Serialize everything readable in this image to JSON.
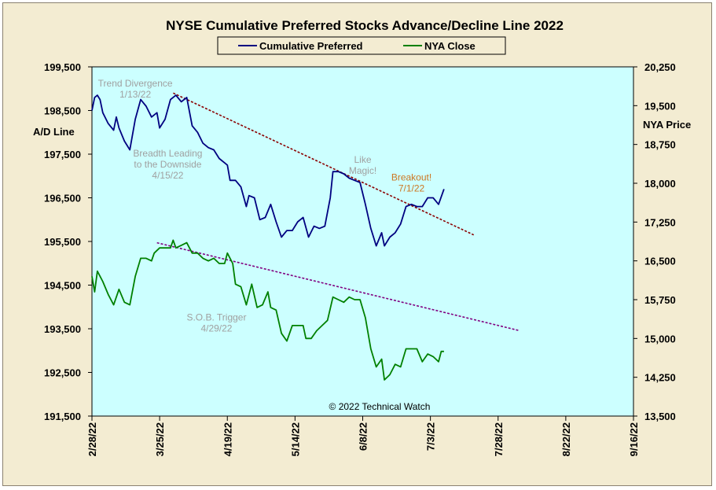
{
  "chart_data": {
    "type": "line",
    "title": "NYSE Cumulative  Preferred Stocks Advance/Decline  Line 2022",
    "ylabel_left": "A/D Line",
    "ylabel_right": "NYA Price",
    "copyright": "© 2022  Technical Watch",
    "legend": [
      "Cumulative Preferred",
      "NYA Close"
    ],
    "colors": {
      "ad_line": "#000080",
      "nya": "#008000",
      "plot_bg": "#ccffff",
      "frame_bg": "#f3ecd2",
      "ad_trend": "#8b0000",
      "nya_trend": "#800080",
      "annotation": "#a0a0a0",
      "breakout": "#cc7722"
    },
    "x_ticks": [
      "2/28/22",
      "3/25/22",
      "4/19/22",
      "5/14/22",
      "6/8/22",
      "7/3/22",
      "7/28/22",
      "8/22/22",
      "9/16/22"
    ],
    "x_tick_days": [
      0,
      25,
      50,
      75,
      100,
      125,
      150,
      175,
      200
    ],
    "y_left": {
      "min": 191500,
      "max": 199500,
      "ticks": [
        "191,500",
        "192,500",
        "193,500",
        "194,500",
        "195,500",
        "196,500",
        "197,500",
        "198,500",
        "199,500"
      ]
    },
    "y_right": {
      "min": 13500,
      "max": 20250,
      "ticks": [
        "13,500",
        "14,250",
        "15,000",
        "15,750",
        "16,500",
        "17,250",
        "18,000",
        "18,750",
        "19,500",
        "20,250"
      ]
    },
    "series": [
      {
        "name": "Cumulative Preferred",
        "axis": "left",
        "points": [
          [
            0,
            198500
          ],
          [
            1,
            198800
          ],
          [
            2,
            198850
          ],
          [
            3,
            198750
          ],
          [
            4,
            198450
          ],
          [
            6,
            198200
          ],
          [
            8,
            198050
          ],
          [
            9,
            198350
          ],
          [
            10,
            198100
          ],
          [
            12,
            197800
          ],
          [
            14,
            197600
          ],
          [
            16,
            198300
          ],
          [
            18,
            198750
          ],
          [
            20,
            198600
          ],
          [
            22,
            198350
          ],
          [
            24,
            198450
          ],
          [
            25,
            198100
          ],
          [
            27,
            198300
          ],
          [
            29,
            198750
          ],
          [
            31,
            198850
          ],
          [
            33,
            198700
          ],
          [
            35,
            198800
          ],
          [
            37,
            198150
          ],
          [
            39,
            198000
          ],
          [
            41,
            197750
          ],
          [
            43,
            197650
          ],
          [
            45,
            197600
          ],
          [
            47,
            197400
          ],
          [
            49,
            197300
          ],
          [
            50,
            197250
          ],
          [
            51,
            196900
          ],
          [
            53,
            196900
          ],
          [
            55,
            196750
          ],
          [
            57,
            196300
          ],
          [
            58,
            196550
          ],
          [
            60,
            196500
          ],
          [
            62,
            196000
          ],
          [
            64,
            196050
          ],
          [
            66,
            196350
          ],
          [
            68,
            195950
          ],
          [
            70,
            195600
          ],
          [
            72,
            195750
          ],
          [
            74,
            195750
          ],
          [
            76,
            195950
          ],
          [
            78,
            196050
          ],
          [
            80,
            195600
          ],
          [
            82,
            195850
          ],
          [
            84,
            195800
          ],
          [
            86,
            195850
          ],
          [
            88,
            196500
          ],
          [
            89,
            197100
          ],
          [
            91,
            197100
          ],
          [
            93,
            197050
          ],
          [
            95,
            196950
          ],
          [
            97,
            196900
          ],
          [
            99,
            196850
          ],
          [
            101,
            196350
          ],
          [
            103,
            195800
          ],
          [
            105,
            195400
          ],
          [
            107,
            195700
          ],
          [
            108,
            195400
          ],
          [
            110,
            195600
          ],
          [
            112,
            195700
          ],
          [
            114,
            195900
          ],
          [
            116,
            196300
          ],
          [
            118,
            196350
          ],
          [
            120,
            196300
          ],
          [
            122,
            196300
          ],
          [
            124,
            196500
          ],
          [
            126,
            196500
          ],
          [
            128,
            196350
          ],
          [
            130,
            196700
          ]
        ]
      },
      {
        "name": "NYA Close",
        "axis": "right",
        "points": [
          [
            0,
            16200
          ],
          [
            1,
            15900
          ],
          [
            2,
            16300
          ],
          [
            4,
            16100
          ],
          [
            6,
            15850
          ],
          [
            8,
            15650
          ],
          [
            10,
            15950
          ],
          [
            12,
            15700
          ],
          [
            14,
            15650
          ],
          [
            16,
            16200
          ],
          [
            18,
            16550
          ],
          [
            20,
            16550
          ],
          [
            22,
            16500
          ],
          [
            23,
            16650
          ],
          [
            25,
            16750
          ],
          [
            27,
            16750
          ],
          [
            29,
            16750
          ],
          [
            30,
            16900
          ],
          [
            31,
            16750
          ],
          [
            33,
            16800
          ],
          [
            35,
            16850
          ],
          [
            37,
            16650
          ],
          [
            39,
            16650
          ],
          [
            41,
            16550
          ],
          [
            43,
            16500
          ],
          [
            45,
            16550
          ],
          [
            47,
            16450
          ],
          [
            49,
            16450
          ],
          [
            50,
            16650
          ],
          [
            52,
            16450
          ],
          [
            53,
            16050
          ],
          [
            55,
            16000
          ],
          [
            57,
            15650
          ],
          [
            59,
            16050
          ],
          [
            61,
            15600
          ],
          [
            63,
            15650
          ],
          [
            65,
            15900
          ],
          [
            66,
            15600
          ],
          [
            68,
            15550
          ],
          [
            70,
            15100
          ],
          [
            72,
            14950
          ],
          [
            74,
            15250
          ],
          [
            76,
            15250
          ],
          [
            78,
            15250
          ],
          [
            79,
            15000
          ],
          [
            81,
            15000
          ],
          [
            83,
            15150
          ],
          [
            85,
            15250
          ],
          [
            87,
            15350
          ],
          [
            89,
            15800
          ],
          [
            91,
            15750
          ],
          [
            93,
            15700
          ],
          [
            95,
            15800
          ],
          [
            97,
            15750
          ],
          [
            99,
            15750
          ],
          [
            101,
            15400
          ],
          [
            103,
            14800
          ],
          [
            105,
            14450
          ],
          [
            107,
            14600
          ],
          [
            108,
            14200
          ],
          [
            110,
            14300
          ],
          [
            112,
            14500
          ],
          [
            114,
            14450
          ],
          [
            116,
            14800
          ],
          [
            118,
            14800
          ],
          [
            120,
            14800
          ],
          [
            122,
            14550
          ],
          [
            124,
            14700
          ],
          [
            126,
            14650
          ],
          [
            128,
            14550
          ],
          [
            129,
            14750
          ],
          [
            130,
            14750
          ]
        ]
      }
    ],
    "trendlines": [
      {
        "name": "A/D resistance",
        "axis": "left",
        "from": [
          30,
          198900
        ],
        "to": [
          141,
          195650
        ]
      },
      {
        "name": "NYA resistance",
        "axis": "right",
        "from": [
          24,
          16850
        ],
        "to": [
          158,
          15150
        ]
      }
    ],
    "annotations": [
      {
        "lines": [
          "Trend  Divergence",
          "1/13/22"
        ],
        "day": 16,
        "value": 199050,
        "axis": "left",
        "color": "annotation"
      },
      {
        "lines": [
          "Breadth Leading",
          "to the Downside",
          "4/15/22"
        ],
        "day": 28,
        "value": 197450,
        "axis": "left",
        "color": "annotation"
      },
      {
        "lines": [
          "Like",
          "Magic!"
        ],
        "day": 100,
        "value": 197300,
        "axis": "left",
        "color": "annotation"
      },
      {
        "lines": [
          "Breakout!",
          "7/1/22"
        ],
        "day": 118,
        "value": 196900,
        "axis": "left",
        "color": "breakout"
      },
      {
        "lines": [
          "S.O.B. Trigger",
          "4/29/22"
        ],
        "day": 46,
        "value": 15350,
        "axis": "right",
        "color": "annotation"
      }
    ]
  }
}
